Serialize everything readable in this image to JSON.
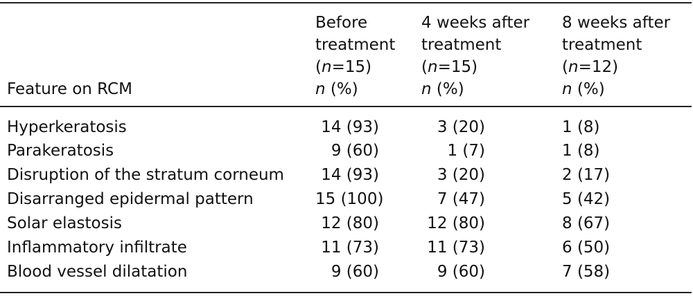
{
  "header": {
    "feature": "Feature on RCM",
    "columns": [
      {
        "line1": "Before",
        "line2": "treatment",
        "n_open": "(",
        "n_var": "n",
        "n_eq": "=15)",
        "pct_var": "n",
        "pct_rest": " (%)"
      },
      {
        "line1": "4 weeks after",
        "line2": "treatment",
        "n_open": "(",
        "n_var": "n",
        "n_eq": "=15)",
        "pct_var": "n",
        "pct_rest": " (%)"
      },
      {
        "line1": "8 weeks after",
        "line2": "treatment",
        "n_open": "(",
        "n_var": "n",
        "n_eq": "=12)",
        "pct_var": "n",
        "pct_rest": " (%)"
      }
    ]
  },
  "rows": [
    {
      "feature": "Hyperkeratosis",
      "before": "14 (93)",
      "w4": "3 (20)",
      "w8": "1 (8)"
    },
    {
      "feature": "Parakeratosis",
      "before": "9 (60)",
      "w4": "1 (7)",
      "w8": "1 (8)"
    },
    {
      "feature": "Disruption of the stratum corneum",
      "before": "14 (93)",
      "w4": "3 (20)",
      "w8": "2 (17)"
    },
    {
      "feature": "Disarranged epidermal pattern",
      "before": "15 (100)",
      "w4": "7 (47)",
      "w8": "5 (42)"
    },
    {
      "feature": "Solar elastosis",
      "before": "12 (80)",
      "w4": "12 (80)",
      "w8": "8 (67)"
    },
    {
      "feature": "Inflammatory infiltrate",
      "before": "11 (73)",
      "w4": "11 (73)",
      "w8": "6 (50)"
    },
    {
      "feature": "Blood vessel dilatation",
      "before": "9 (60)",
      "w4": "9 (60)",
      "w8": "7 (58)"
    }
  ]
}
